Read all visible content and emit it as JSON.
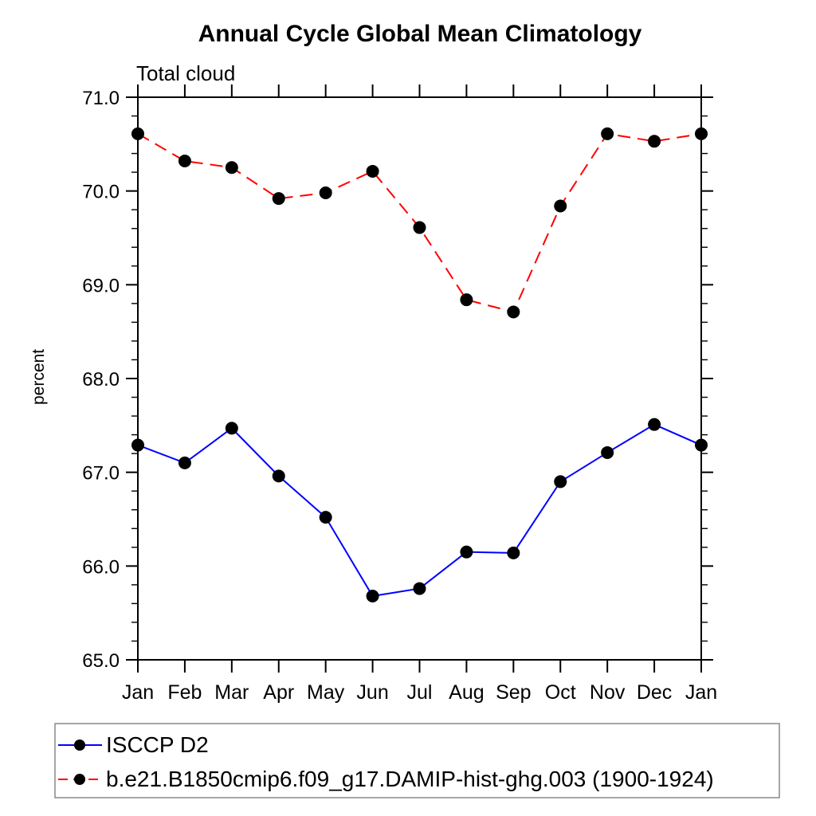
{
  "title": "Annual Cycle Global Mean Climatology",
  "subtitle": "Total cloud",
  "chart_data": {
    "type": "line",
    "title": "Annual Cycle Global Mean Climatology",
    "subtitle": "Total cloud",
    "xlabel": "",
    "ylabel": "percent",
    "x_categories": [
      "Jan",
      "Feb",
      "Mar",
      "Apr",
      "May",
      "Jun",
      "Jul",
      "Aug",
      "Sep",
      "Oct",
      "Nov",
      "Dec",
      "Jan"
    ],
    "ylim": [
      65.0,
      71.0
    ],
    "ytick_major_step": 1.0,
    "ytick_minor_step": 0.2,
    "ytick_labels": [
      "65.0",
      "66.0",
      "67.0",
      "68.0",
      "69.0",
      "70.0",
      "71.0"
    ],
    "grid": false,
    "legend_position": "bottom-left-box",
    "marker": "filled-circle",
    "marker_color": "#000000",
    "series": [
      {
        "name": "ISCCP D2",
        "color": "#0000ff",
        "line_style": "solid",
        "values": [
          67.29,
          67.1,
          67.47,
          66.96,
          66.52,
          65.68,
          65.76,
          66.15,
          66.14,
          66.9,
          67.21,
          67.51,
          67.29
        ]
      },
      {
        "name": "b.e21.B1850cmip6.f09_g17.DAMIP-hist-ghg.003 (1900-1924)",
        "color": "#ff0000",
        "line_style": "dashed",
        "values": [
          70.61,
          70.32,
          70.25,
          69.92,
          69.98,
          70.21,
          69.61,
          68.84,
          68.71,
          69.84,
          70.61,
          70.53,
          70.61
        ]
      }
    ],
    "colors": {
      "axis": "#000000",
      "text": "#000000",
      "legend_border": "#888888",
      "background": "#ffffff"
    }
  }
}
